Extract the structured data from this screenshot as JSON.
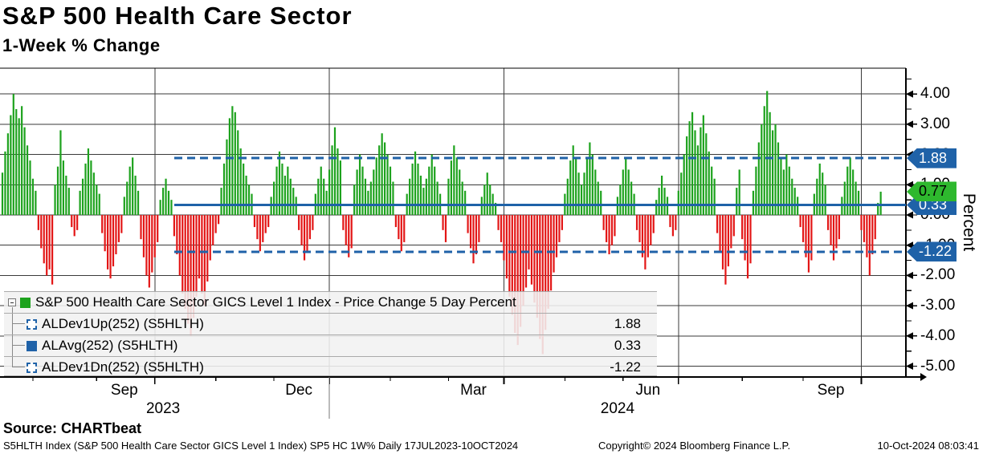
{
  "title": "S&P 500 Health Care Sector",
  "subtitle": "1-Week % Change",
  "source_line": "Source: CHARTbeat",
  "footer": {
    "left": "S5HLTH Index (S&P 500 Health Care Sector GICS Level 1 Index) SP5 HC 1W%  Daily 17JUL2023-10OCT2024",
    "copyright": "Copyright© 2024 Bloomberg Finance L.P.",
    "timestamp": "10-Oct-2024 08:03:41"
  },
  "legend": {
    "rows": [
      {
        "label": "S&P 500 Health Care Sector GICS Level 1 Index - Price Change 5 Day Percent",
        "value": ""
      },
      {
        "label": "ALDev1Up(252) (S5HLTH)",
        "value": "1.88"
      },
      {
        "label": "ALAvg(252) (S5HLTH)",
        "value": "0.33"
      },
      {
        "label": "ALDev1Dn(252) (S5HLTH)",
        "value": "-1.22"
      }
    ]
  },
  "badges": [
    {
      "text": "1.88",
      "value": 1.88,
      "style": "blue"
    },
    {
      "text": "0.33",
      "value": 0.33,
      "style": "blue"
    },
    {
      "text": "0.77",
      "value": 0.77,
      "style": "green"
    },
    {
      "text": "-1.22",
      "value": -1.22,
      "style": "blue"
    }
  ],
  "colors": {
    "up": "#1da21d",
    "down": "#e31616",
    "blue_line": "#1f62a8",
    "grid": "#3a3a3a",
    "axis": "#000000"
  },
  "chart_data": {
    "type": "bar",
    "title": "S&P 500 Health Care Sector 1-Week % Change",
    "ylabel": "Percent",
    "x_unit": "daily trading sessions, 17JUL2023 - 10OCT2024",
    "ylim": [
      -5.35,
      4.85
    ],
    "y_ticks": [
      "4.00",
      "3.00",
      "2.00",
      "1.00",
      "0.00",
      "-1.00",
      "-2.00",
      "-3.00",
      "-4.00",
      "-5.00"
    ],
    "x_axis": {
      "tick_labels": [
        {
          "text": "Sep",
          "day": 44
        },
        {
          "text": "Dec",
          "day": 107
        },
        {
          "text": "Mar",
          "day": 170
        },
        {
          "text": "Jun",
          "day": 233
        },
        {
          "text": "Sep",
          "day": 299
        }
      ],
      "year_labels": [
        {
          "text": "2023",
          "day": 58
        },
        {
          "text": "2024",
          "day": 222
        }
      ],
      "month_tick_days": [
        11,
        34,
        55,
        77,
        98,
        118,
        140,
        161,
        181,
        203,
        224,
        244,
        267,
        289,
        310
      ],
      "quarter_gridline_days": [
        55,
        118,
        181,
        244,
        310
      ],
      "year_separator_day": 118
    },
    "reference_lines": [
      {
        "name": "ALDev1Up(252) (S5HLTH)",
        "value": 1.88,
        "style": "dashed",
        "start_day": 62
      },
      {
        "name": "ALAvg(252) (S5HLTH)",
        "value": 0.33,
        "style": "solid",
        "start_day": 62
      },
      {
        "name": "ALDev1Dn(252) (S5HLTH)",
        "value": -1.22,
        "style": "dashed",
        "start_day": 62
      }
    ],
    "last_value": 0.77,
    "values": [
      1.4,
      2.1,
      2.7,
      3.3,
      4.0,
      3.5,
      3.2,
      3.6,
      2.9,
      2.3,
      1.8,
      1.2,
      0.8,
      -0.5,
      -1.1,
      -1.6,
      -2.0,
      -1.8,
      -2.3,
      1.0,
      1.6,
      2.8,
      1.8,
      1.3,
      0.9,
      -0.4,
      -0.7,
      -0.5,
      0.8,
      1.2,
      1.7,
      2.2,
      1.8,
      1.4,
      1.0,
      0.7,
      -0.6,
      -1.2,
      -1.8,
      -2.1,
      -1.7,
      -1.3,
      -0.9,
      -0.6,
      0.6,
      1.1,
      1.6,
      1.9,
      1.3,
      0.8,
      -0.8,
      -1.4,
      -2.0,
      -2.4,
      -1.9,
      -1.4,
      -0.9,
      0.5,
      0.9,
      1.2,
      0.8,
      0.5,
      -0.7,
      -1.3,
      -2.0,
      -2.6,
      -3.1,
      -3.6,
      -4.0,
      -3.4,
      -2.7,
      -2.1,
      -2.6,
      -3.0,
      -2.2,
      -1.5,
      -1.0,
      -0.6,
      -0.3,
      0.9,
      1.7,
      2.5,
      3.2,
      3.6,
      3.4,
      2.8,
      2.2,
      1.7,
      1.3,
      1.0,
      0.7,
      -0.4,
      -0.8,
      -1.2,
      -0.9,
      -0.6,
      -0.4,
      0.6,
      1.1,
      1.6,
      2.1,
      1.7,
      1.3,
      1.6,
      1.2,
      0.9,
      0.6,
      -0.5,
      -1.0,
      -1.5,
      -1.2,
      -0.8,
      -0.5,
      0.7,
      1.2,
      1.6,
      1.2,
      0.8,
      1.5,
      2.3,
      2.9,
      2.2,
      1.8,
      -0.5,
      -1.0,
      -1.4,
      -1.1,
      1.0,
      1.5,
      2.0,
      1.6,
      1.2,
      0.8,
      1.1,
      1.5,
      1.9,
      2.3,
      2.7,
      2.4,
      2.0,
      1.6,
      1.1,
      -0.4,
      -0.8,
      -1.2,
      -0.9,
      0.7,
      1.2,
      1.7,
      2.1,
      1.7,
      1.3,
      0.9,
      1.2,
      1.6,
      2.0,
      1.6,
      1.1,
      0.7,
      -0.5,
      -0.9,
      1.2,
      1.8,
      2.3,
      1.9,
      1.5,
      1.1,
      0.8,
      -0.6,
      -1.1,
      -1.6,
      -1.3,
      -0.9,
      0.6,
      1.0,
      1.4,
      1.0,
      0.7,
      0.4,
      -0.5,
      -0.9,
      -1.5,
      -2.1,
      -2.7,
      -3.3,
      -3.9,
      -4.3,
      -3.7,
      -3.0,
      -2.4,
      -1.8,
      -2.3,
      -2.9,
      -3.4,
      -4.1,
      -4.6,
      -3.8,
      -3.1,
      -2.5,
      -1.9,
      -1.4,
      -0.9,
      -0.5,
      0.7,
      1.2,
      1.8,
      2.3,
      1.9,
      1.4,
      1.0,
      1.4,
      1.9,
      2.4,
      2.0,
      1.5,
      1.1,
      0.8,
      -0.5,
      -0.9,
      -1.3,
      -1.0,
      -0.7,
      0.6,
      1.0,
      1.5,
      1.9,
      1.5,
      1.1,
      0.7,
      -0.5,
      -0.9,
      -1.4,
      -1.8,
      -1.4,
      -1.0,
      -0.6,
      0.5,
      0.9,
      1.3,
      0.9,
      0.6,
      -0.4,
      -0.7,
      -0.5,
      0.8,
      1.4,
      2.0,
      2.6,
      3.1,
      3.4,
      2.8,
      2.3,
      2.9,
      3.3,
      2.7,
      2.1,
      1.6,
      1.2,
      -0.6,
      -1.2,
      -1.8,
      -2.3,
      -1.7,
      -1.1,
      -0.7,
      0.9,
      1.5,
      -0.8,
      -1.5,
      -2.1,
      -1.6,
      0.8,
      1.6,
      2.4,
      3.0,
      3.6,
      4.1,
      3.4,
      2.8,
      3.0,
      2.4,
      1.9,
      1.5,
      2.0,
      1.6,
      1.2,
      0.9,
      0.6,
      -0.4,
      -0.9,
      -1.4,
      -1.9,
      -1.5,
      0.7,
      1.2,
      1.7,
      1.4,
      1.0,
      -0.5,
      -1.0,
      -1.5,
      -1.1,
      -0.8,
      0.6,
      1.1,
      1.6,
      1.9,
      1.5,
      1.1,
      0.8,
      -0.5,
      -0.9,
      -1.4,
      -2.0,
      -1.3,
      -0.8,
      0.4,
      0.77
    ]
  }
}
